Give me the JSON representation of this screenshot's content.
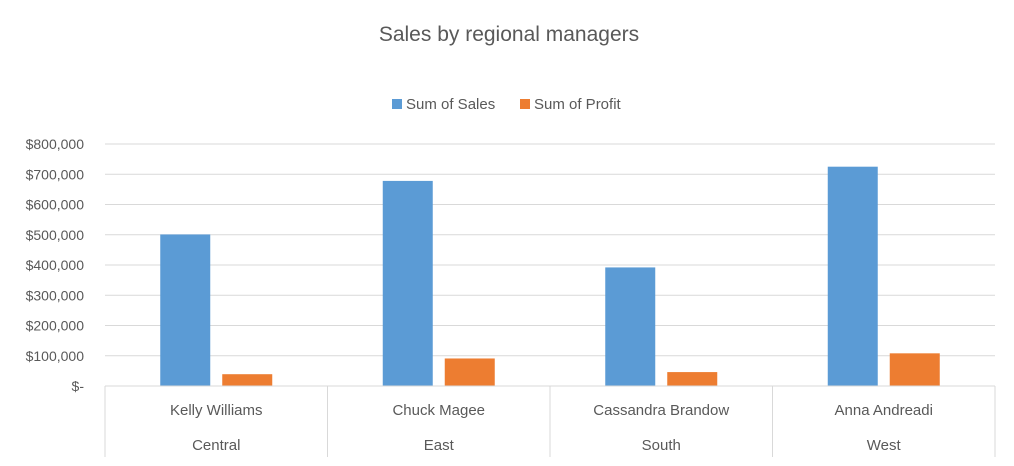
{
  "chart_data": {
    "type": "bar",
    "title": "Sales by regional managers",
    "categories": [
      "Kelly Williams",
      "Chuck Magee",
      "Cassandra Brandow",
      "Anna Andreadi"
    ],
    "groups": [
      "Central",
      "East",
      "South",
      "West"
    ],
    "series": [
      {
        "name": "Sum of Sales",
        "color": "#5B9BD5",
        "values": [
          501000,
          678000,
          392000,
          725000
        ]
      },
      {
        "name": "Sum of Profit",
        "color": "#ED7D31",
        "values": [
          39000,
          91000,
          46000,
          108000
        ]
      }
    ],
    "yticks": [
      "$-",
      "$100,000",
      "$200,000",
      "$300,000",
      "$400,000",
      "$500,000",
      "$600,000",
      "$700,000",
      "$800,000"
    ],
    "ylim": [
      0,
      800000
    ],
    "grid": true,
    "legend": "top"
  }
}
